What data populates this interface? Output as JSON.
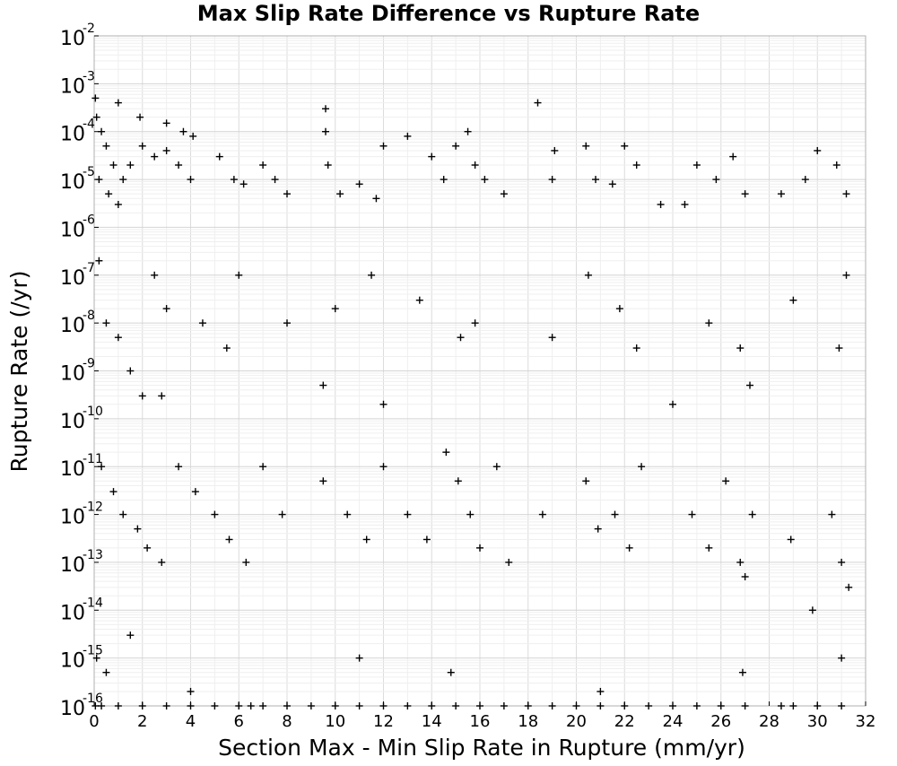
{
  "chart_data": {
    "type": "scatter",
    "title": "Max Slip Rate Difference vs Rupture Rate",
    "xlabel": "Section Max - Min Slip Rate in Rupture (mm/yr)",
    "ylabel": "Rupture Rate (/yr)",
    "xlim": [
      0,
      32
    ],
    "ylim": [
      1e-16,
      0.01
    ],
    "yscale": "log",
    "grid": true,
    "marker": "+",
    "marker_color": "#000000",
    "x_ticks": [
      "0",
      "2",
      "4",
      "6",
      "8",
      "10",
      "12",
      "14",
      "16",
      "18",
      "20",
      "22",
      "24",
      "26",
      "28",
      "30",
      "32"
    ],
    "y_ticks": [
      {
        "base": "10",
        "exp": "-2"
      },
      {
        "base": "10",
        "exp": "-3"
      },
      {
        "base": "10",
        "exp": "-4"
      },
      {
        "base": "10",
        "exp": "-5"
      },
      {
        "base": "10",
        "exp": "-6"
      },
      {
        "base": "10",
        "exp": "-7"
      },
      {
        "base": "10",
        "exp": "-8"
      },
      {
        "base": "10",
        "exp": "-9"
      },
      {
        "base": "10",
        "exp": "-10"
      },
      {
        "base": "10",
        "exp": "-11"
      },
      {
        "base": "10",
        "exp": "-12"
      },
      {
        "base": "10",
        "exp": "-13"
      },
      {
        "base": "10",
        "exp": "-14"
      },
      {
        "base": "10",
        "exp": "-15"
      },
      {
        "base": "10",
        "exp": "-16"
      }
    ],
    "points": [
      [
        0.05,
        0.0005
      ],
      [
        0.1,
        0.0002
      ],
      [
        0.3,
        0.0001
      ],
      [
        0.5,
        5e-05
      ],
      [
        0.8,
        2e-05
      ],
      [
        0.2,
        1e-05
      ],
      [
        0.6,
        5e-06
      ],
      [
        1.0,
        3e-06
      ],
      [
        1.2,
        1e-05
      ],
      [
        1.5,
        2e-05
      ],
      [
        2.0,
        5e-05
      ],
      [
        2.5,
        3e-05
      ],
      [
        3.0,
        4e-05
      ],
      [
        3.5,
        2e-05
      ],
      [
        4.0,
        1e-05
      ],
      [
        1.0,
        0.0004
      ],
      [
        1.9,
        0.0002
      ],
      [
        3.0,
        0.00015
      ],
      [
        3.7,
        0.0001
      ],
      [
        4.1,
        8e-05
      ],
      [
        5.2,
        3e-05
      ],
      [
        5.8,
        1e-05
      ],
      [
        6.2,
        8e-06
      ],
      [
        7.0,
        2e-05
      ],
      [
        7.5,
        1e-05
      ],
      [
        8.0,
        5e-06
      ],
      [
        9.6,
        0.0003
      ],
      [
        9.6,
        0.0001
      ],
      [
        9.7,
        2e-05
      ],
      [
        10.2,
        5e-06
      ],
      [
        11.0,
        8e-06
      ],
      [
        11.7,
        4e-06
      ],
      [
        12.0,
        5e-05
      ],
      [
        13.0,
        8e-05
      ],
      [
        14.0,
        3e-05
      ],
      [
        14.5,
        1e-05
      ],
      [
        15.0,
        5e-05
      ],
      [
        15.5,
        0.0001
      ],
      [
        15.8,
        2e-05
      ],
      [
        16.2,
        1e-05
      ],
      [
        17.0,
        5e-06
      ],
      [
        18.4,
        0.0004
      ],
      [
        19.1,
        4e-05
      ],
      [
        19.0,
        1e-05
      ],
      [
        20.4,
        5e-05
      ],
      [
        20.8,
        1e-05
      ],
      [
        21.5,
        8e-06
      ],
      [
        22.0,
        5e-05
      ],
      [
        22.5,
        2e-05
      ],
      [
        23.5,
        3e-06
      ],
      [
        24.5,
        3e-06
      ],
      [
        25.0,
        2e-05
      ],
      [
        25.8,
        1e-05
      ],
      [
        26.5,
        3e-05
      ],
      [
        27.0,
        5e-06
      ],
      [
        28.5,
        5e-06
      ],
      [
        29.5,
        1e-05
      ],
      [
        30.0,
        4e-05
      ],
      [
        30.8,
        2e-05
      ],
      [
        31.2,
        5e-06
      ],
      [
        0.2,
        2e-07
      ],
      [
        0.5,
        1e-08
      ],
      [
        1.0,
        5e-09
      ],
      [
        1.5,
        1e-09
      ],
      [
        2.0,
        3e-10
      ],
      [
        2.5,
        1e-07
      ],
      [
        3.0,
        2e-08
      ],
      [
        4.5,
        1e-08
      ],
      [
        5.5,
        3e-09
      ],
      [
        6.0,
        1e-07
      ],
      [
        8.0,
        1e-08
      ],
      [
        10.0,
        2e-08
      ],
      [
        11.5,
        1e-07
      ],
      [
        13.5,
        3e-08
      ],
      [
        15.2,
        5e-09
      ],
      [
        15.8,
        1e-08
      ],
      [
        19.0,
        5e-09
      ],
      [
        20.5,
        1e-07
      ],
      [
        21.8,
        2e-08
      ],
      [
        22.5,
        3e-09
      ],
      [
        25.5,
        1e-08
      ],
      [
        26.8,
        3e-09
      ],
      [
        27.2,
        5e-10
      ],
      [
        29.0,
        3e-08
      ],
      [
        30.9,
        3e-09
      ],
      [
        31.2,
        1e-07
      ],
      [
        2.8,
        3e-10
      ],
      [
        9.5,
        5e-10
      ],
      [
        12.0,
        2e-10
      ],
      [
        24.0,
        2e-10
      ],
      [
        0.3,
        1e-11
      ],
      [
        0.8,
        3e-12
      ],
      [
        1.2,
        1e-12
      ],
      [
        1.8,
        5e-13
      ],
      [
        2.2,
        2e-13
      ],
      [
        2.8,
        1e-13
      ],
      [
        3.5,
        1e-11
      ],
      [
        4.2,
        3e-12
      ],
      [
        5.0,
        1e-12
      ],
      [
        5.6,
        3e-13
      ],
      [
        6.3,
        1e-13
      ],
      [
        7.0,
        1e-11
      ],
      [
        7.8,
        1e-12
      ],
      [
        9.5,
        5e-12
      ],
      [
        10.5,
        1e-12
      ],
      [
        11.3,
        3e-13
      ],
      [
        12.0,
        1e-11
      ],
      [
        13.0,
        1e-12
      ],
      [
        13.8,
        3e-13
      ],
      [
        14.6,
        2e-11
      ],
      [
        15.1,
        5e-12
      ],
      [
        15.6,
        1e-12
      ],
      [
        16.0,
        2e-13
      ],
      [
        16.7,
        1e-11
      ],
      [
        17.2,
        1e-13
      ],
      [
        18.6,
        1e-12
      ],
      [
        20.4,
        5e-12
      ],
      [
        20.9,
        5e-13
      ],
      [
        21.6,
        1e-12
      ],
      [
        22.2,
        2e-13
      ],
      [
        22.7,
        1e-11
      ],
      [
        24.8,
        1e-12
      ],
      [
        25.5,
        2e-13
      ],
      [
        26.2,
        5e-12
      ],
      [
        26.8,
        1e-13
      ],
      [
        27.0,
        5e-14
      ],
      [
        27.3,
        1e-12
      ],
      [
        28.9,
        3e-13
      ],
      [
        29.8,
        1e-14
      ],
      [
        30.6,
        1e-12
      ],
      [
        31.0,
        1e-13
      ],
      [
        31.3,
        3e-14
      ],
      [
        0.1,
        1e-15
      ],
      [
        0.5,
        5e-16
      ],
      [
        1.5,
        3e-15
      ],
      [
        4.0,
        2e-16
      ],
      [
        6.5,
        1e-16
      ],
      [
        11.0,
        1e-15
      ],
      [
        14.8,
        5e-16
      ],
      [
        21.0,
        2e-16
      ],
      [
        26.9,
        5e-16
      ],
      [
        28.5,
        1e-16
      ],
      [
        31.0,
        1e-15
      ],
      [
        0.05,
        1e-16
      ],
      [
        0.3,
        1e-16
      ],
      [
        1.0,
        1e-16
      ],
      [
        2.0,
        1e-16
      ],
      [
        3.0,
        1e-16
      ],
      [
        4.0,
        1e-16
      ],
      [
        5.0,
        1e-16
      ],
      [
        6.0,
        1e-16
      ],
      [
        7.0,
        1e-16
      ],
      [
        8.0,
        1e-16
      ],
      [
        9.0,
        1e-16
      ],
      [
        10.0,
        1e-16
      ],
      [
        11.0,
        1e-16
      ],
      [
        12.0,
        1e-16
      ],
      [
        13.0,
        1e-16
      ],
      [
        14.0,
        1e-16
      ],
      [
        15.0,
        1e-16
      ],
      [
        16.0,
        1e-16
      ],
      [
        17.0,
        1e-16
      ],
      [
        18.0,
        1e-16
      ],
      [
        19.0,
        1e-16
      ],
      [
        20.0,
        1e-16
      ],
      [
        21.0,
        1e-16
      ],
      [
        22.0,
        1e-16
      ],
      [
        23.0,
        1e-16
      ],
      [
        24.0,
        1e-16
      ],
      [
        25.0,
        1e-16
      ],
      [
        26.0,
        1e-16
      ],
      [
        27.0,
        1e-16
      ],
      [
        29.0,
        1e-16
      ],
      [
        30.0,
        1e-16
      ],
      [
        31.0,
        1e-16
      ]
    ]
  }
}
